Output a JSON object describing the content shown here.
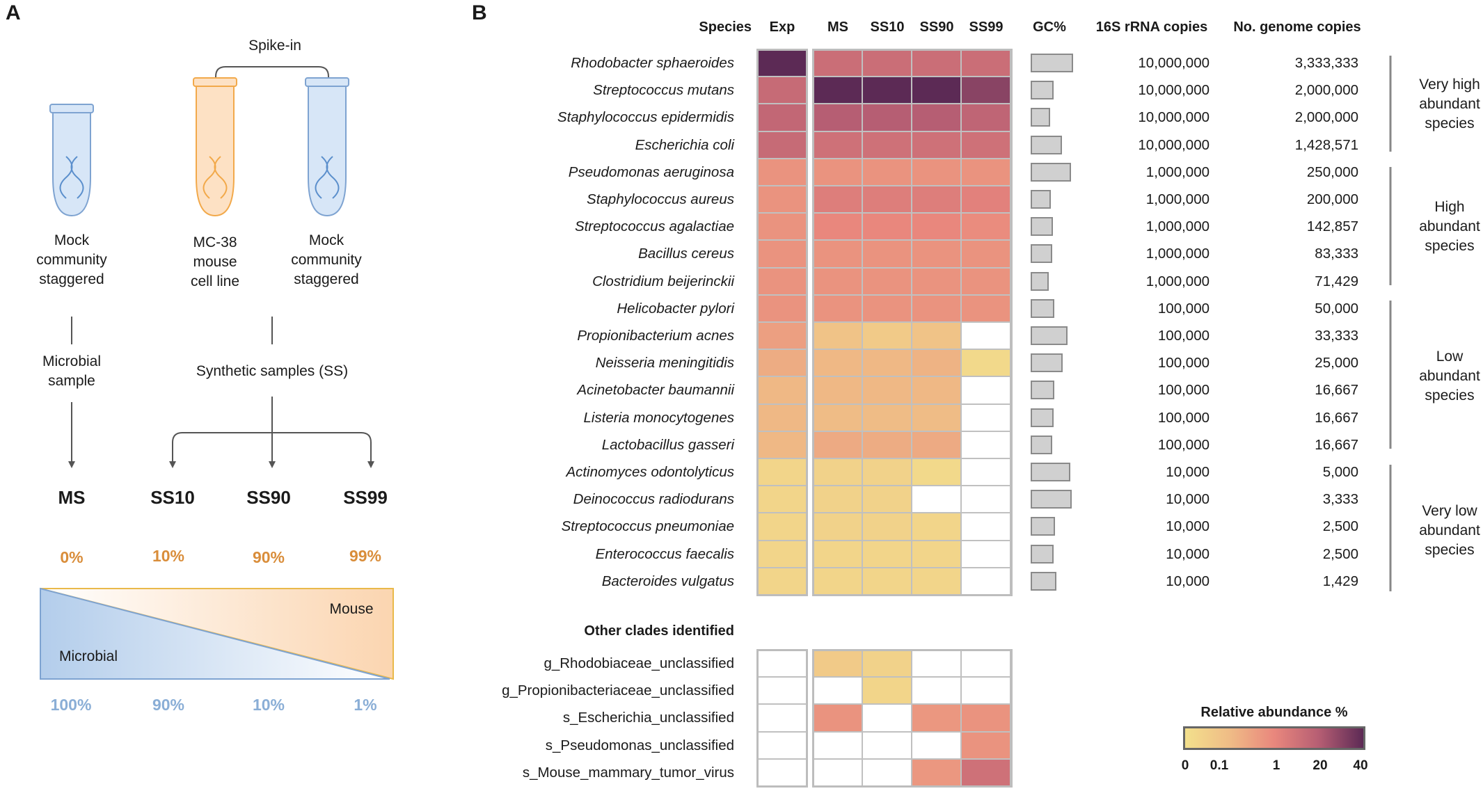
{
  "panelA": {
    "letter": "A",
    "spike_in": "Spike-in",
    "tube_labels": [
      [
        "Mock",
        "community",
        "staggered"
      ],
      [
        "MC-38",
        "mouse",
        "cell line"
      ],
      [
        "Mock",
        "community",
        "staggered"
      ]
    ],
    "microbial_sample": [
      "Microbial",
      "sample"
    ],
    "synthetic_samples": "Synthetic samples (SS)",
    "samples": [
      "MS",
      "SS10",
      "SS90",
      "SS99"
    ],
    "mouse_pct": [
      "0%",
      "10%",
      "90%",
      "99%"
    ],
    "microbial_pct": [
      "100%",
      "90%",
      "10%",
      "1%"
    ],
    "mouse_label": "Mouse",
    "microbial_label": "Microbial",
    "colors": {
      "orange": "#d98d3a",
      "blue": "#8aaed6",
      "tube_orange": "#f2a94a",
      "tube_blue": "#7ea3d1"
    }
  },
  "panelB": {
    "letter": "B",
    "headers": {
      "species": "Species",
      "gc": "GC%",
      "rrna": "16S rRNA copies",
      "genome": "No. genome copies",
      "other": "Other clades identified"
    },
    "columns": [
      "Exp",
      "MS",
      "SS10",
      "SS90",
      "SS99"
    ],
    "species": [
      "Rhodobacter sphaeroides",
      "Streptococcus mutans",
      "Staphylococcus epidermidis",
      "Escherichia coli",
      "Pseudomonas aeruginosa",
      "Staphylococcus aureus",
      "Streptococcus agalactiae",
      "Bacillus cereus",
      "Clostridium beijerinckii",
      "Helicobacter pylori",
      "Propionibacterium acnes",
      "Neisseria meningitidis",
      "Acinetobacter baumannii",
      "Listeria monocytogenes",
      "Lactobacillus gasseri",
      "Actinomyces odontolyticus",
      "Deinococcus radiodurans",
      "Streptococcus pneumoniae",
      "Enterococcus faecalis",
      "Bacteroides vulgatus"
    ],
    "rrna_copies": [
      "10,000,000",
      "10,000,000",
      "10,000,000",
      "10,000,000",
      "1,000,000",
      "1,000,000",
      "1,000,000",
      "1,000,000",
      "1,000,000",
      "100,000",
      "100,000",
      "100,000",
      "100,000",
      "100,000",
      "100,000",
      "10,000",
      "10,000",
      "10,000",
      "10,000",
      "10,000"
    ],
    "genome_copies": [
      "3,333,333",
      "2,000,000",
      "2,000,000",
      "1,428,571",
      "250,000",
      "200,000",
      "142,857",
      "83,333",
      "71,429",
      "50,000",
      "33,333",
      "25,000",
      "16,667",
      "16,667",
      "16,667",
      "5,000",
      "3,333",
      "2,500",
      "2,500",
      "1,429"
    ],
    "gc_fraction": [
      0.69,
      0.37,
      0.32,
      0.51,
      0.66,
      0.33,
      0.36,
      0.35,
      0.3,
      0.39,
      0.6,
      0.52,
      0.39,
      0.38,
      0.35,
      0.65,
      0.67,
      0.4,
      0.38,
      0.42
    ],
    "heat_values": [
      [
        40,
        6,
        6,
        6,
        6
      ],
      [
        8,
        40,
        40,
        40,
        30
      ],
      [
        10,
        20,
        20,
        20,
        12
      ],
      [
        8,
        5,
        5,
        5,
        5
      ],
      [
        0.6,
        0.6,
        0.6,
        0.6,
        0.6
      ],
      [
        0.6,
        2,
        2,
        2,
        1.5
      ],
      [
        0.6,
        1,
        1,
        1,
        0.8
      ],
      [
        0.6,
        0.6,
        0.6,
        0.6,
        0.6
      ],
      [
        0.6,
        0.6,
        0.6,
        0.6,
        0.6
      ],
      [
        0.6,
        0.6,
        0.6,
        0.6,
        0.6
      ],
      [
        0.35,
        0.08,
        0.06,
        0.08,
        null
      ],
      [
        0.2,
        0.12,
        0.12,
        0.15,
        0.02
      ],
      [
        0.12,
        0.12,
        0.12,
        0.12,
        null
      ],
      [
        0.12,
        0.1,
        0.1,
        0.1,
        null
      ],
      [
        0.12,
        0.22,
        0.2,
        0.22,
        null
      ],
      [
        0.03,
        0.04,
        0.04,
        0.02,
        null
      ],
      [
        0.03,
        0.04,
        0.04,
        null,
        null
      ],
      [
        0.03,
        0.04,
        0.04,
        0.03,
        null
      ],
      [
        0.03,
        0.03,
        0.03,
        0.03,
        null
      ],
      [
        0.03,
        0.03,
        0.03,
        0.03,
        null
      ]
    ],
    "other_clades": [
      "g_Rhodobiaceae_unclassified",
      "g_Propionibacteriaceae_unclassified",
      "s_Escherichia_unclassified",
      "s_Pseudomonas_unclassified",
      "s_Mouse_mammary_tumor_virus"
    ],
    "other_values": [
      [
        null,
        0.06,
        0.04,
        null,
        null
      ],
      [
        null,
        null,
        0.03,
        null,
        null
      ],
      [
        null,
        0.6,
        null,
        0.5,
        0.6
      ],
      [
        null,
        null,
        null,
        null,
        0.6
      ],
      [
        null,
        null,
        null,
        0.5,
        5
      ]
    ],
    "groups": [
      [
        "Very high",
        "abundant",
        "species"
      ],
      [
        "High",
        "abundant",
        "species"
      ],
      [
        "Low",
        "abundant",
        "species"
      ],
      [
        "Very low",
        "abundant",
        "species"
      ]
    ],
    "legend": {
      "title": "Relative abundance %",
      "ticks": [
        "0",
        "0.1",
        "1",
        "20",
        "40"
      ]
    },
    "colors": {
      "low": "#f3e08c",
      "mid": "#e9877d",
      "high": "#5c2a55",
      "empty": "#ffffff",
      "grid": "#c0c0c0",
      "gc_bar": "#d0d0d0"
    }
  }
}
